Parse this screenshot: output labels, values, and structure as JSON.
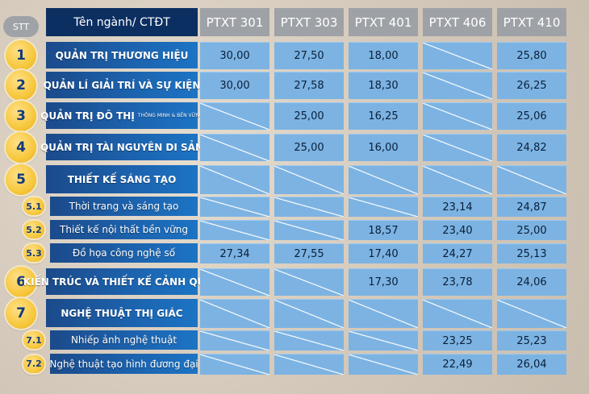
{
  "header": {
    "stt": "STT",
    "name": "Tên ngành/ CTĐT",
    "columns": [
      "PTXT 301",
      "PTXT 303",
      "PTXT 401",
      "PTXT 406",
      "PTXT 410"
    ]
  },
  "rows": [
    {
      "num": "1",
      "name": "QUẢN TRỊ THƯƠNG HIỆU",
      "note": "",
      "values": [
        "30,00",
        "27,50",
        "18,00",
        "",
        "25,80"
      ]
    },
    {
      "num": "2",
      "name": "QUẢN LÍ GIẢI TRÍ VÀ SỰ KIỆN",
      "note": "",
      "values": [
        "30,00",
        "27,58",
        "18,30",
        "",
        "26,25"
      ]
    },
    {
      "num": "3",
      "name": "QUẢN TRỊ ĐÔ THỊ",
      "note": "THÔNG MINH & BỀN VỮNG",
      "values": [
        "",
        "25,00",
        "16,25",
        "",
        "25,06"
      ]
    },
    {
      "num": "4",
      "name": "QUẢN TRỊ TÀI NGUYÊN DI SẢN",
      "note": "",
      "values": [
        "",
        "25,00",
        "16,00",
        "",
        "24,82"
      ]
    },
    {
      "num": "5",
      "name": "THIẾT KẾ SÁNG TẠO",
      "note": "",
      "values": [
        "",
        "",
        "",
        "",
        ""
      ]
    },
    {
      "num": "5.1",
      "name": "Thời trang và sáng tạo",
      "note": "",
      "values": [
        "",
        "",
        "",
        "23,14",
        "24,87"
      ]
    },
    {
      "num": "5.2",
      "name": "Thiết kế nội thất bền vững",
      "note": "",
      "values": [
        "",
        "",
        "18,57",
        "23,40",
        "25,00"
      ]
    },
    {
      "num": "5.3",
      "name": "Đồ họa công nghệ số",
      "note": "",
      "values": [
        "27,34",
        "27,55",
        "17,40",
        "24,27",
        "25,13"
      ]
    },
    {
      "num": "6",
      "name": "KIẾN TRÚC VÀ THIẾT KẾ CẢNH QUAN",
      "note": "",
      "values": [
        "",
        "",
        "17,30",
        "23,78",
        "24,06"
      ]
    },
    {
      "num": "7",
      "name": "NGHỆ THUẬT THỊ GIÁC",
      "note": "",
      "values": [
        "",
        "",
        "",
        "",
        ""
      ]
    },
    {
      "num": "7.1",
      "name": "Nhiếp ảnh nghệ thuật",
      "note": "",
      "values": [
        "",
        "",
        "",
        "23,25",
        "25,23"
      ]
    },
    {
      "num": "7.2",
      "name": "Nghệ thuật tạo hình đương đại",
      "note": "",
      "values": [
        "",
        "",
        "",
        "22,49",
        "26,04"
      ]
    }
  ]
}
